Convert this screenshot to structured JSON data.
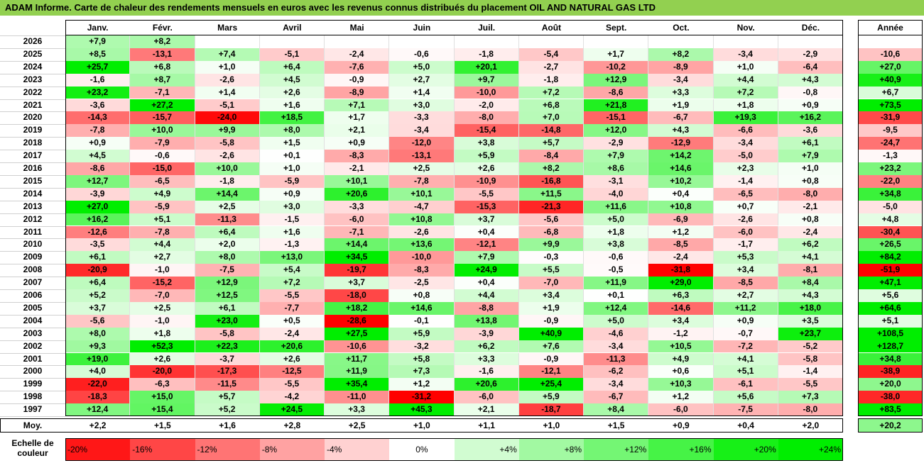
{
  "title": "ADAM Informe. Carte de chaleur des rendements mensuels en euros avec les revenus connus distribués du placement OIL AND NATURAL GAS LTD",
  "colors": {
    "title_bg": "#92d050",
    "negative_strong": "#ff0000",
    "positive_strong": "#00ee00",
    "neutral": "#ffffff"
  },
  "chart_data": {
    "type": "heatmap",
    "months": [
      "Janv.",
      "Févr.",
      "Mars",
      "Avril",
      "Mai",
      "Juin",
      "Juil.",
      "Août",
      "Sept.",
      "Oct.",
      "Nov.",
      "Déc."
    ],
    "annual_header": "Année",
    "rows": [
      {
        "year": "2026",
        "values": [
          "+7,9",
          "+8,2",
          "",
          "",
          "",
          "",
          "",
          "",
          "",
          "",
          "",
          ""
        ],
        "annual": ""
      },
      {
        "year": "2025",
        "values": [
          "+8,5",
          "-13,1",
          "+7,4",
          "-5,1",
          "-2,4",
          "-0,6",
          "-1,8",
          "-5,4",
          "+1,7",
          "+8,2",
          "-3,4",
          "-2,9"
        ],
        "annual": "-10,6"
      },
      {
        "year": "2024",
        "values": [
          "+25,7",
          "+6,8",
          "+1,0",
          "+6,4",
          "-7,6",
          "+5,0",
          "+20,1",
          "-2,7",
          "-10,2",
          "-8,9",
          "+1,0",
          "-6,4"
        ],
        "annual": "+27,0"
      },
      {
        "year": "2023",
        "values": [
          "-1,6",
          "+8,7",
          "-2,6",
          "+4,5",
          "-0,9",
          "+2,7",
          "+9,7",
          "-1,8",
          "+12,9",
          "-3,4",
          "+4,4",
          "+4,3"
        ],
        "annual": "+40,9"
      },
      {
        "year": "2022",
        "values": [
          "+23,2",
          "-7,1",
          "+1,4",
          "+2,6",
          "-8,9",
          "+1,4",
          "-10,0",
          "+7,2",
          "-8,6",
          "+3,3",
          "+7,2",
          "-0,8"
        ],
        "annual": "+6,7"
      },
      {
        "year": "2021",
        "values": [
          "-3,6",
          "+27,2",
          "-5,1",
          "+1,6",
          "+7,1",
          "+3,0",
          "-2,0",
          "+6,8",
          "+21,8",
          "+1,9",
          "+1,8",
          "+0,9"
        ],
        "annual": "+73,5"
      },
      {
        "year": "2020",
        "values": [
          "-14,3",
          "-15,7",
          "-24,0",
          "+18,5",
          "+1,7",
          "-3,3",
          "-8,0",
          "+7,0",
          "-15,1",
          "-6,7",
          "+19,3",
          "+16,2"
        ],
        "annual": "-31,9"
      },
      {
        "year": "2019",
        "values": [
          "-7,8",
          "+10,0",
          "+9,9",
          "+8,0",
          "+2,1",
          "-3,4",
          "-15,4",
          "-14,8",
          "+12,0",
          "+4,3",
          "-6,6",
          "-3,6"
        ],
        "annual": "-9,5"
      },
      {
        "year": "2018",
        "values": [
          "+0,9",
          "-7,9",
          "-5,8",
          "+1,5",
          "+0,9",
          "-12,0",
          "+3,8",
          "+5,7",
          "-2,9",
          "-12,9",
          "-3,4",
          "+6,1"
        ],
        "annual": "-24,7"
      },
      {
        "year": "2017",
        "values": [
          "+4,5",
          "-0,6",
          "-2,6",
          "+0,1",
          "-8,3",
          "-13,1",
          "+5,9",
          "-8,4",
          "+7,9",
          "+14,2",
          "-5,0",
          "+7,9"
        ],
        "annual": "-1,3"
      },
      {
        "year": "2016",
        "values": [
          "-8,6",
          "-15,0",
          "+10,0",
          "+1,0",
          "-2,1",
          "+2,5",
          "+2,6",
          "+8,2",
          "+8,6",
          "+14,6",
          "+2,3",
          "+1,0"
        ],
        "annual": "+23,2"
      },
      {
        "year": "2015",
        "values": [
          "+12,7",
          "-6,5",
          "-1,8",
          "-5,9",
          "+10,1",
          "-7,8",
          "-10,9",
          "-16,8",
          "-3,1",
          "+10,2",
          "-1,4",
          "+0,8"
        ],
        "annual": "-22,0"
      },
      {
        "year": "2014",
        "values": [
          "-3,9",
          "+4,9",
          "+14,4",
          "+0,9",
          "+20,6",
          "+10,1",
          "-5,5",
          "+11,5",
          "-4,0",
          "+0,4",
          "-6,5",
          "-8,0"
        ],
        "annual": "+34,8"
      },
      {
        "year": "2013",
        "values": [
          "+27,0",
          "-5,9",
          "+2,5",
          "+3,0",
          "-3,3",
          "-4,7",
          "-15,3",
          "-21,3",
          "+11,6",
          "+10,8",
          "+0,7",
          "-2,1"
        ],
        "annual": "-5,0"
      },
      {
        "year": "2012",
        "values": [
          "+16,2",
          "+5,1",
          "-11,3",
          "-1,5",
          "-6,0",
          "+10,8",
          "+3,7",
          "-5,6",
          "+5,0",
          "-6,9",
          "-2,6",
          "+0,8"
        ],
        "annual": "+4,8"
      },
      {
        "year": "2011",
        "values": [
          "-12,6",
          "-7,8",
          "+6,4",
          "+1,6",
          "-7,1",
          "-2,6",
          "+0,4",
          "-6,8",
          "+1,8",
          "+1,2",
          "-6,0",
          "-2,4"
        ],
        "annual": "-30,4"
      },
      {
        "year": "2010",
        "values": [
          "-3,5",
          "+4,4",
          "+2,0",
          "-1,3",
          "+14,4",
          "+13,6",
          "-12,1",
          "+9,9",
          "+3,8",
          "-8,5",
          "-1,7",
          "+6,2"
        ],
        "annual": "+26,5"
      },
      {
        "year": "2009",
        "values": [
          "+6,1",
          "+2,7",
          "+8,0",
          "+13,0",
          "+34,5",
          "-10,0",
          "+7,9",
          "-0,3",
          "-0,6",
          "-2,4",
          "+5,3",
          "+4,1"
        ],
        "annual": "+84,2"
      },
      {
        "year": "2008",
        "values": [
          "-20,9",
          "-1,0",
          "-7,5",
          "+5,4",
          "-19,7",
          "-8,3",
          "+24,9",
          "+5,5",
          "-0,5",
          "-31,8",
          "+3,4",
          "-8,1"
        ],
        "annual": "-51,9"
      },
      {
        "year": "2007",
        "values": [
          "+6,4",
          "-15,2",
          "+12,9",
          "+7,2",
          "+3,7",
          "-2,5",
          "+0,4",
          "-7,0",
          "+11,9",
          "+29,0",
          "-8,5",
          "+8,4"
        ],
        "annual": "+47,1"
      },
      {
        "year": "2006",
        "values": [
          "+5,2",
          "-7,0",
          "+12,5",
          "-5,5",
          "-18,0",
          "+0,8",
          "+4,4",
          "+3,4",
          "+0,1",
          "+6,3",
          "+2,7",
          "+4,3"
        ],
        "annual": "+5,6"
      },
      {
        "year": "2005",
        "values": [
          "+3,7",
          "+2,5",
          "+6,1",
          "-7,7",
          "+18,2",
          "+14,6",
          "-8,8",
          "+1,9",
          "+12,4",
          "-14,6",
          "+11,2",
          "+18,0"
        ],
        "annual": "+64,6"
      },
      {
        "year": "2004",
        "values": [
          "-5,6",
          "-1,0",
          "+23,0",
          "+0,5",
          "-28,6",
          "-0,1",
          "+13,8",
          "-0,9",
          "+5,0",
          "+3,4",
          "+0,9",
          "+3,5"
        ],
        "annual": "+5,1"
      },
      {
        "year": "2003",
        "values": [
          "+8,0",
          "+1,8",
          "-5,8",
          "-2,4",
          "+27,5",
          "+5,9",
          "-3,9",
          "+40,9",
          "-4,6",
          "-1,2",
          "-0,7",
          "+23,7"
        ],
        "annual": "+108,5"
      },
      {
        "year": "2002",
        "values": [
          "+9,3",
          "+52,3",
          "+22,3",
          "+20,6",
          "-10,6",
          "-3,2",
          "+6,2",
          "+7,6",
          "-3,4",
          "+10,5",
          "-7,2",
          "-5,2"
        ],
        "annual": "+128,7"
      },
      {
        "year": "2001",
        "values": [
          "+19,0",
          "+2,6",
          "-3,7",
          "+2,6",
          "+11,7",
          "+5,8",
          "+3,3",
          "-0,9",
          "-11,3",
          "+4,9",
          "+4,1",
          "-5,8"
        ],
        "annual": "+34,8"
      },
      {
        "year": "2000",
        "values": [
          "+4,0",
          "-20,0",
          "-17,3",
          "-12,5",
          "+11,9",
          "+7,3",
          "-1,6",
          "-12,1",
          "-6,2",
          "+0,6",
          "+5,1",
          "-1,4"
        ],
        "annual": "-38,9"
      },
      {
        "year": "1999",
        "values": [
          "-22,0",
          "-6,3",
          "-11,5",
          "-5,5",
          "+35,4",
          "+1,2",
          "+20,6",
          "+25,4",
          "-3,4",
          "+10,3",
          "-6,1",
          "-5,5"
        ],
        "annual": "+20,0"
      },
      {
        "year": "1998",
        "values": [
          "-18,3",
          "+15,0",
          "+5,7",
          "-4,2",
          "-11,0",
          "-31,2",
          "-6,0",
          "+5,9",
          "-6,7",
          "+1,2",
          "+5,6",
          "+7,3"
        ],
        "annual": "-38,0"
      },
      {
        "year": "1997",
        "values": [
          "+12,4",
          "+15,4",
          "+5,2",
          "+24,5",
          "+3,3",
          "+45,3",
          "+2,1",
          "-18,7",
          "+8,4",
          "-6,0",
          "-7,5",
          "-8,0"
        ],
        "annual": "+83,5"
      }
    ],
    "average": {
      "label": "Moy.",
      "values": [
        "+2,2",
        "+1,5",
        "+1,6",
        "+2,8",
        "+2,5",
        "+1,0",
        "+1,1",
        "+1,0",
        "+1,5",
        "+0,9",
        "+0,4",
        "+2,0"
      ],
      "annual": "+20,2"
    },
    "legend": {
      "label_line1": "Echelle de",
      "label_line2": "couleur",
      "steps": [
        "-20%",
        "-16%",
        "-12%",
        "-8%",
        "-4%",
        "0%",
        "+4%",
        "+8%",
        "+12%",
        "+16%",
        "+20%",
        "+24%"
      ]
    }
  }
}
